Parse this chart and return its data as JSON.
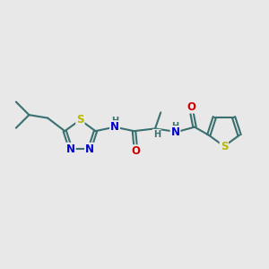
{
  "bg_color": "#e8e8e8",
  "bond_color": "#3a7070",
  "bond_width": 1.5,
  "atom_colors": {
    "S": "#b8b800",
    "N": "#0000cc",
    "O": "#cc0000",
    "C": "#3a7070",
    "H": "#3a7070"
  },
  "font_size": 8.5,
  "fig_size": [
    3.0,
    3.0
  ],
  "dpi": 100
}
